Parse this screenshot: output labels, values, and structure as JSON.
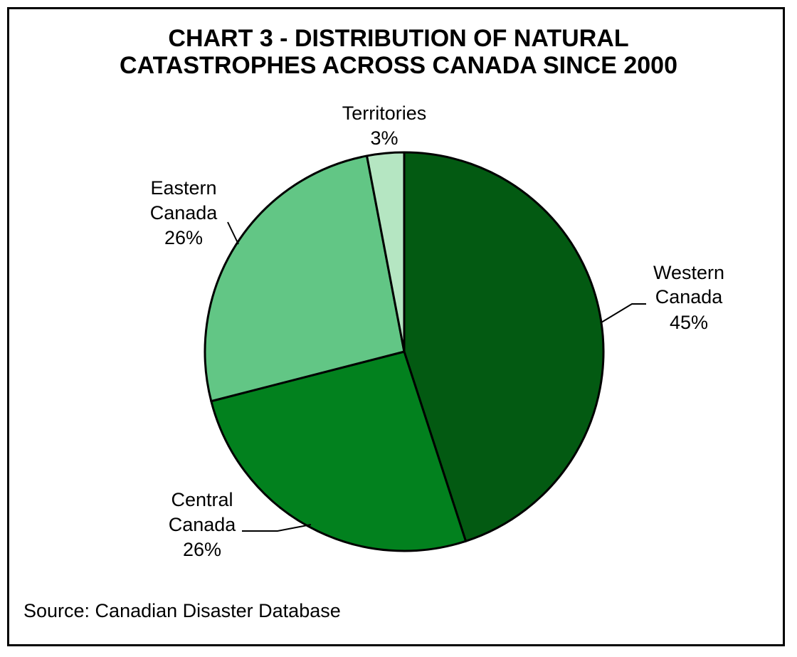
{
  "chart_data": {
    "type": "pie",
    "title_lines": [
      "CHART 3 - DISTRIBUTION OF NATURAL",
      "CATASTROPHES ACROSS CANADA SINCE 2000"
    ],
    "start_angle_deg": 0,
    "direction": "clockwise",
    "slices": [
      {
        "label_lines": [
          "Western",
          "Canada"
        ],
        "value": 45,
        "value_label": "45%",
        "color": "#035A12"
      },
      {
        "label_lines": [
          "Central",
          "Canada"
        ],
        "value": 26,
        "value_label": "26%",
        "color": "#02811E"
      },
      {
        "label_lines": [
          "Eastern",
          "Canada"
        ],
        "value": 26,
        "value_label": "26%",
        "color": "#62C685"
      },
      {
        "label_lines": [
          "Territories"
        ],
        "value": 3,
        "value_label": "3%",
        "color": "#B5E6C2"
      }
    ],
    "source": "Source: Canadian Disaster Database"
  }
}
